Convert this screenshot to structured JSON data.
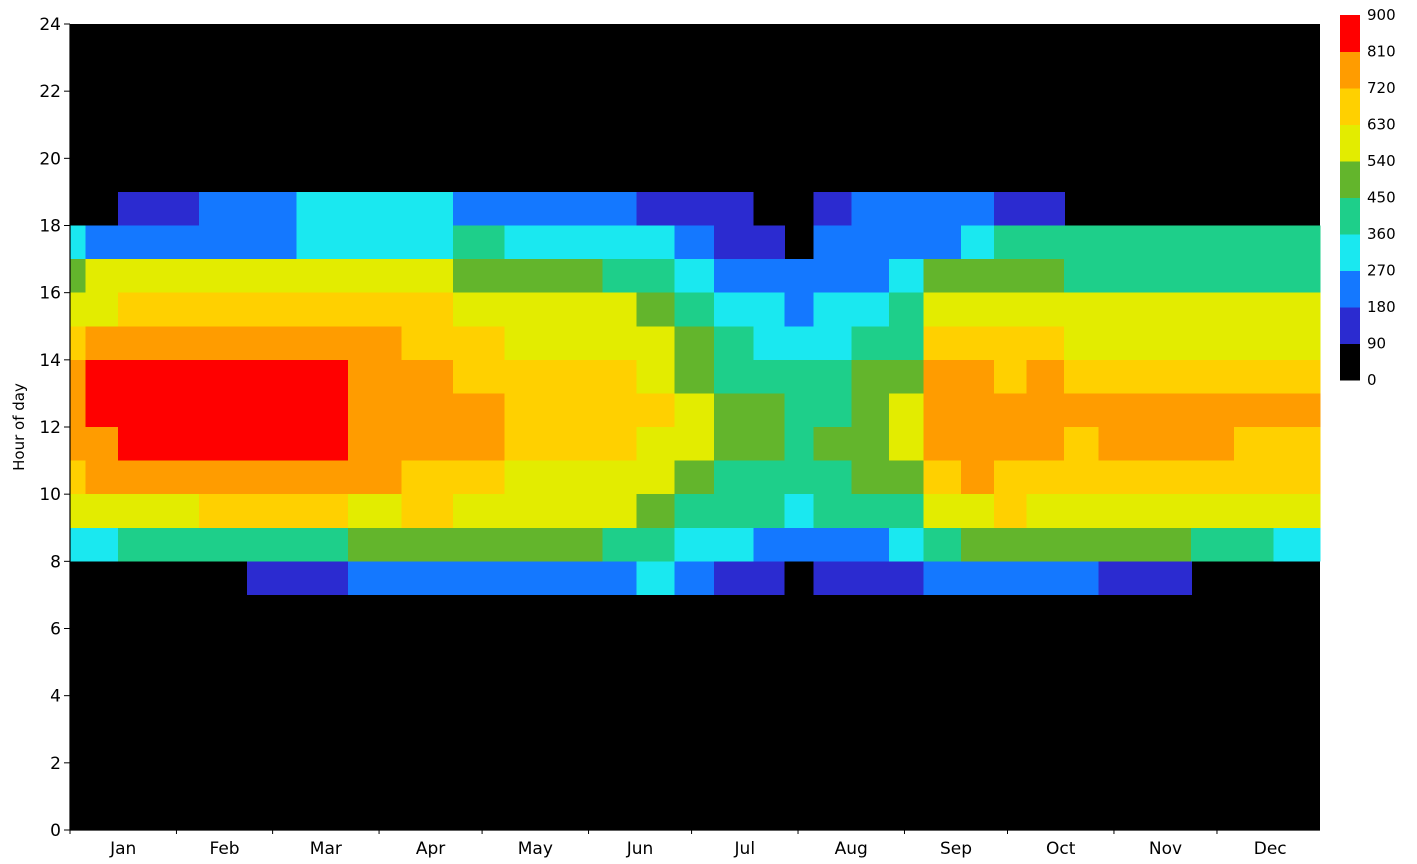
{
  "chart_data": {
    "type": "heatmap",
    "title": "",
    "xlabel": "",
    "ylabel": "Hour of day",
    "x_ticks": [
      "Jan",
      "Feb",
      "Mar",
      "Apr",
      "May",
      "Jun",
      "Jul",
      "Aug",
      "Sep",
      "Oct",
      "Nov",
      "Dec"
    ],
    "y_ticks": [
      0,
      2,
      4,
      6,
      8,
      10,
      12,
      14,
      16,
      18,
      20,
      22,
      24
    ],
    "ylim": [
      0,
      24
    ],
    "xlim_day": [
      1,
      365
    ],
    "colorbar": {
      "min": 0,
      "max": 900,
      "ticks": [
        0,
        90,
        180,
        270,
        360,
        450,
        540,
        630,
        720,
        810,
        900
      ],
      "colors": [
        "#000000",
        "#2b2bd0",
        "#1478ff",
        "#1ae8f0",
        "#1ecf8a",
        "#63b52c",
        "#e3ec00",
        "#ffd000",
        "#ff9c00",
        "#ff0000"
      ],
      "placement": "right"
    },
    "background_value": 0,
    "day_samples": [
      1,
      10,
      20,
      32,
      45,
      60,
      74,
      90,
      105,
      120,
      135,
      152,
      160,
      172,
      182,
      195,
      205,
      213,
      222,
      235,
      244,
      255,
      266,
      274,
      285,
      296,
      305,
      320,
      335,
      345,
      358,
      365
    ],
    "hours": [
      6,
      7,
      8,
      9,
      10,
      11,
      12,
      13,
      14,
      15,
      16,
      17,
      18
    ],
    "z": [
      [
        0,
        0,
        350,
        580,
        680,
        760,
        780,
        760,
        700,
        600,
        520,
        300,
        0
      ],
      [
        0,
        0,
        350,
        600,
        720,
        800,
        860,
        840,
        720,
        620,
        540,
        220,
        0
      ],
      [
        0,
        0,
        400,
        600,
        720,
        820,
        860,
        840,
        720,
        640,
        540,
        200,
        130
      ],
      [
        0,
        0,
        420,
        620,
        740,
        840,
        880,
        860,
        760,
        680,
        560,
        240,
        140
      ],
      [
        0,
        0,
        420,
        640,
        760,
        860,
        880,
        880,
        780,
        680,
        560,
        250,
        180
      ],
      [
        0,
        140,
        430,
        640,
        760,
        850,
        880,
        860,
        760,
        660,
        560,
        240,
        200
      ],
      [
        0,
        170,
        430,
        640,
        750,
        860,
        880,
        870,
        760,
        660,
        560,
        300,
        320
      ],
      [
        0,
        200,
        460,
        620,
        730,
        780,
        780,
        760,
        720,
        650,
        560,
        320,
        300
      ],
      [
        0,
        210,
        480,
        640,
        700,
        740,
        760,
        740,
        700,
        630,
        550,
        350,
        270
      ],
      [
        0,
        240,
        450,
        600,
        660,
        720,
        740,
        700,
        660,
        620,
        520,
        380,
        250
      ],
      [
        0,
        260,
        450,
        560,
        620,
        680,
        700,
        660,
        620,
        560,
        480,
        340,
        260
      ],
      [
        0,
        260,
        460,
        540,
        600,
        640,
        660,
        640,
        600,
        540,
        460,
        320,
        250
      ],
      [
        0,
        240,
        420,
        540,
        620,
        660,
        680,
        660,
        620,
        540,
        430,
        300,
        200
      ],
      [
        0,
        300,
        380,
        480,
        560,
        620,
        640,
        600,
        540,
        460,
        380,
        300,
        160
      ],
      [
        0,
        220,
        300,
        420,
        520,
        560,
        560,
        520,
        460,
        380,
        300,
        220,
        120
      ],
      [
        0,
        160,
        280,
        380,
        440,
        500,
        480,
        440,
        380,
        300,
        220,
        160,
        100
      ],
      [
        0,
        120,
        240,
        360,
        440,
        480,
        460,
        420,
        340,
        280,
        200,
        120,
        80
      ],
      [
        0,
        80,
        200,
        320,
        420,
        440,
        420,
        380,
        320,
        240,
        180,
        0,
        0
      ],
      [
        0,
        90,
        220,
        360,
        440,
        460,
        440,
        400,
        340,
        280,
        200,
        180,
        150
      ],
      [
        0,
        120,
        260,
        380,
        460,
        500,
        500,
        460,
        400,
        320,
        240,
        200,
        180
      ],
      [
        0,
        150,
        300,
        420,
        500,
        540,
        540,
        500,
        440,
        360,
        280,
        200,
        200
      ],
      [
        0,
        240,
        420,
        600,
        700,
        760,
        760,
        720,
        640,
        560,
        480,
        240,
        220
      ],
      [
        0,
        260,
        480,
        620,
        720,
        760,
        760,
        720,
        660,
        560,
        500,
        300,
        260
      ],
      [
        0,
        200,
        500,
        640,
        700,
        740,
        740,
        700,
        660,
        580,
        500,
        380,
        150
      ],
      [
        0,
        180,
        480,
        600,
        680,
        740,
        760,
        720,
        640,
        580,
        500,
        400,
        140
      ],
      [
        0,
        180,
        460,
        560,
        660,
        700,
        740,
        700,
        620,
        560,
        440,
        380,
        0
      ],
      [
        0,
        170,
        460,
        560,
        650,
        720,
        740,
        700,
        620,
        560,
        440,
        380,
        0
      ],
      [
        0,
        140,
        460,
        560,
        650,
        720,
        740,
        700,
        620,
        560,
        440,
        380,
        0
      ],
      [
        0,
        0,
        420,
        560,
        640,
        720,
        740,
        700,
        620,
        560,
        440,
        380,
        0
      ],
      [
        0,
        0,
        380,
        560,
        640,
        700,
        740,
        700,
        620,
        560,
        440,
        380,
        0
      ],
      [
        0,
        0,
        320,
        540,
        630,
        700,
        730,
        700,
        600,
        540,
        420,
        360,
        0
      ],
      [
        0,
        0,
        320,
        540,
        630,
        700,
        730,
        700,
        600,
        540,
        420,
        360,
        0
      ]
    ]
  }
}
